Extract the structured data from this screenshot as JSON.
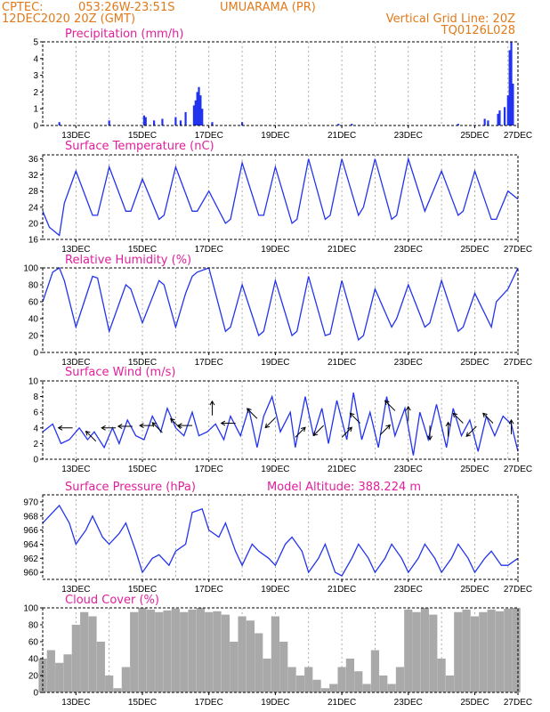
{
  "header": {
    "source": "CPTEC:",
    "coords": "053:26W-23:51S",
    "location": "UMUARAMA (PR)",
    "datetime": "12DEC2020 20Z (GMT)",
    "grid_note": "Vertical Grid Line: 20Z",
    "code": "TQ0126L028"
  },
  "model_altitude": "Model Altitude: 388.224 m",
  "x_tick_labels": [
    "13DEC",
    "15DEC",
    "17DEC",
    "19DEC",
    "21DEC",
    "23DEC",
    "25DEC",
    "27DEC"
  ],
  "colors": {
    "header": "#e07a1a",
    "title": "#e0209a",
    "line": "#2233ee",
    "cloud": "#a9a9a9"
  },
  "chart_data": [
    {
      "type": "bar",
      "title": "Precipitation (mm/h)",
      "ylim": [
        0,
        5
      ],
      "yticks": [
        0,
        1,
        2,
        3,
        4,
        5
      ],
      "x_days": [
        0.5,
        2.0,
        3.05,
        3.1,
        3.35,
        3.6,
        4.0,
        4.15,
        4.3,
        4.55,
        4.6,
        4.65,
        4.7,
        4.75,
        4.8,
        5.1,
        6.0,
        8.9,
        9.3,
        12.5,
        13.3,
        13.4,
        13.7,
        13.75,
        13.9,
        14.0,
        14.05,
        14.1,
        14.15
      ],
      "values": [
        0.2,
        0.3,
        0.6,
        0.5,
        0.3,
        0.4,
        0.5,
        0.3,
        0.8,
        1.2,
        1.5,
        2.0,
        2.3,
        1.8,
        1.0,
        0.2,
        0.2,
        0.1,
        0.1,
        0.1,
        0.4,
        0.3,
        0.7,
        0.9,
        1.1,
        1.8,
        4.5,
        5.0,
        2.5
      ]
    },
    {
      "type": "line",
      "title": "Surface Temperature (nC)",
      "ylim": [
        16,
        37
      ],
      "yticks": [
        16,
        20,
        24,
        28,
        32,
        36
      ],
      "x_days": [
        0.0,
        0.2,
        0.5,
        0.65,
        1.0,
        1.5,
        1.65,
        2.0,
        2.5,
        2.65,
        3.0,
        3.5,
        3.65,
        4.0,
        4.5,
        4.65,
        5.0,
        5.5,
        5.65,
        6.0,
        6.5,
        6.65,
        7.0,
        7.5,
        7.65,
        8.0,
        8.5,
        8.65,
        9.0,
        9.5,
        9.65,
        10.0,
        10.5,
        10.65,
        11.0,
        11.5,
        11.65,
        12.0,
        12.5,
        12.65,
        13.0,
        13.5,
        13.65,
        14.0,
        14.3
      ],
      "values": [
        23,
        19,
        17,
        25,
        33,
        22,
        22,
        34,
        23,
        23,
        31,
        21,
        22,
        34,
        23,
        23,
        28,
        20,
        21,
        35,
        22,
        22,
        34,
        20,
        21,
        36,
        21,
        22,
        36,
        22,
        24,
        36,
        21,
        22,
        36,
        23,
        26,
        33,
        22,
        23,
        33,
        21,
        21,
        28,
        26
      ]
    },
    {
      "type": "line",
      "title": "Relative Humidity (%)",
      "ylim": [
        0,
        100
      ],
      "yticks": [
        0,
        20,
        40,
        60,
        80,
        100
      ],
      "x_days": [
        0.0,
        0.3,
        0.5,
        0.65,
        1.0,
        1.5,
        1.65,
        2.0,
        2.5,
        2.65,
        3.0,
        3.5,
        3.65,
        4.0,
        4.3,
        4.5,
        4.65,
        5.0,
        5.5,
        5.65,
        6.0,
        6.5,
        6.65,
        7.0,
        7.5,
        7.65,
        8.0,
        8.5,
        8.65,
        9.0,
        9.5,
        9.65,
        10.0,
        10.5,
        10.65,
        11.0,
        11.5,
        11.65,
        12.0,
        12.5,
        12.65,
        13.0,
        13.5,
        13.65,
        14.0,
        14.3
      ],
      "values": [
        60,
        95,
        100,
        85,
        30,
        90,
        88,
        25,
        80,
        75,
        35,
        85,
        80,
        30,
        70,
        90,
        95,
        100,
        25,
        30,
        80,
        20,
        25,
        85,
        20,
        25,
        90,
        20,
        22,
        85,
        15,
        20,
        75,
        30,
        40,
        80,
        30,
        35,
        85,
        25,
        30,
        70,
        30,
        60,
        75,
        100
      ]
    },
    {
      "type": "line",
      "title": "Surface Wind (m/s)",
      "ylim": [
        0,
        10
      ],
      "yticks": [
        0,
        2,
        4,
        6,
        8,
        10
      ],
      "x_days": [
        0.0,
        0.3,
        0.55,
        0.8,
        1.1,
        1.35,
        1.55,
        1.85,
        2.1,
        2.3,
        2.55,
        2.8,
        3.05,
        3.3,
        3.55,
        3.75,
        4.0,
        4.25,
        4.5,
        4.7,
        4.95,
        5.2,
        5.45,
        5.65,
        5.95,
        6.2,
        6.45,
        6.65,
        6.9,
        7.15,
        7.45,
        7.6,
        7.9,
        8.15,
        8.4,
        8.6,
        8.85,
        9.15,
        9.35,
        9.6,
        9.85,
        10.1,
        10.35,
        10.6,
        10.9,
        11.15,
        11.35,
        11.6,
        11.85,
        12.15,
        12.35,
        12.6,
        12.85,
        13.1,
        13.35,
        13.6,
        13.85,
        14.1,
        14.3
      ],
      "values": [
        3.5,
        4.5,
        2.0,
        2.5,
        4.0,
        2.5,
        3.5,
        1.5,
        4.0,
        2.0,
        5.0,
        3.0,
        2.5,
        5.5,
        3.5,
        6.5,
        4.0,
        3.0,
        6.0,
        3.0,
        3.5,
        4.5,
        2.5,
        5.5,
        3.0,
        6.5,
        1.5,
        5.5,
        8.0,
        3.5,
        6.0,
        1.5,
        8.0,
        3.0,
        6.5,
        2.0,
        7.5,
        2.5,
        8.5,
        2.5,
        6.0,
        1.5,
        8.0,
        3.0,
        6.5,
        0.5,
        6.0,
        2.5,
        7.0,
        1.5,
        6.5,
        3.0,
        5.0,
        1.0,
        5.5,
        3.0,
        5.5,
        4.5,
        1.0
      ]
    },
    {
      "type": "line",
      "title": "Surface Pressure (hPa)",
      "ylim": [
        959,
        971
      ],
      "yticks": [
        960,
        962,
        964,
        966,
        968,
        970
      ],
      "x_days": [
        0.0,
        0.3,
        0.5,
        0.8,
        1.0,
        1.3,
        1.5,
        1.8,
        2.0,
        2.3,
        2.5,
        2.8,
        3.0,
        3.3,
        3.5,
        3.8,
        4.0,
        4.3,
        4.5,
        4.8,
        5.0,
        5.3,
        5.5,
        5.8,
        6.0,
        6.3,
        6.5,
        6.8,
        7.0,
        7.3,
        7.5,
        7.8,
        8.0,
        8.3,
        8.5,
        8.8,
        9.0,
        9.3,
        9.5,
        9.8,
        10.0,
        10.3,
        10.5,
        10.8,
        11.0,
        11.3,
        11.5,
        11.8,
        12.0,
        12.3,
        12.5,
        12.8,
        13.0,
        13.3,
        13.5,
        13.8,
        14.0,
        14.3
      ],
      "values": [
        967,
        968.5,
        969.5,
        967,
        964,
        966,
        968,
        965,
        964,
        965.5,
        967,
        963,
        960,
        962,
        962.5,
        961,
        963,
        964,
        968.5,
        969,
        966,
        965,
        967,
        963,
        961,
        964,
        963,
        962,
        961,
        964,
        965,
        963,
        960,
        962,
        964,
        960,
        959.5,
        962,
        964,
        962,
        960,
        962,
        964,
        962,
        960,
        962,
        964,
        962,
        960,
        962,
        964,
        962,
        960,
        962,
        963,
        961,
        961,
        962
      ]
    },
    {
      "type": "bar",
      "title": "Cloud Cover (%)",
      "ylim": [
        0,
        100
      ],
      "yticks": [
        0,
        20,
        40,
        60,
        80,
        100
      ],
      "x_days": [
        0.0,
        0.25,
        0.5,
        0.75,
        1.0,
        1.25,
        1.5,
        1.75,
        2.0,
        2.25,
        2.5,
        2.75,
        3.0,
        3.25,
        3.5,
        3.75,
        4.0,
        4.25,
        4.5,
        4.75,
        5.0,
        5.25,
        5.5,
        5.75,
        6.0,
        6.25,
        6.5,
        6.75,
        7.0,
        7.25,
        7.5,
        7.75,
        8.0,
        8.25,
        8.5,
        8.75,
        9.0,
        9.25,
        9.5,
        9.75,
        10.0,
        10.25,
        10.5,
        10.75,
        11.0,
        11.25,
        11.5,
        11.75,
        12.0,
        12.25,
        12.5,
        12.75,
        13.0,
        13.25,
        13.5,
        13.75,
        14.0,
        14.25
      ],
      "values": [
        40,
        50,
        35,
        45,
        80,
        95,
        90,
        60,
        20,
        5,
        30,
        95,
        100,
        98,
        95,
        97,
        99,
        95,
        98,
        100,
        95,
        96,
        92,
        60,
        90,
        85,
        70,
        40,
        90,
        60,
        30,
        20,
        30,
        15,
        5,
        10,
        30,
        40,
        25,
        10,
        50,
        20,
        10,
        30,
        98,
        95,
        100,
        92,
        40,
        20,
        95,
        98,
        90,
        95,
        98,
        96,
        99,
        100
      ]
    }
  ]
}
